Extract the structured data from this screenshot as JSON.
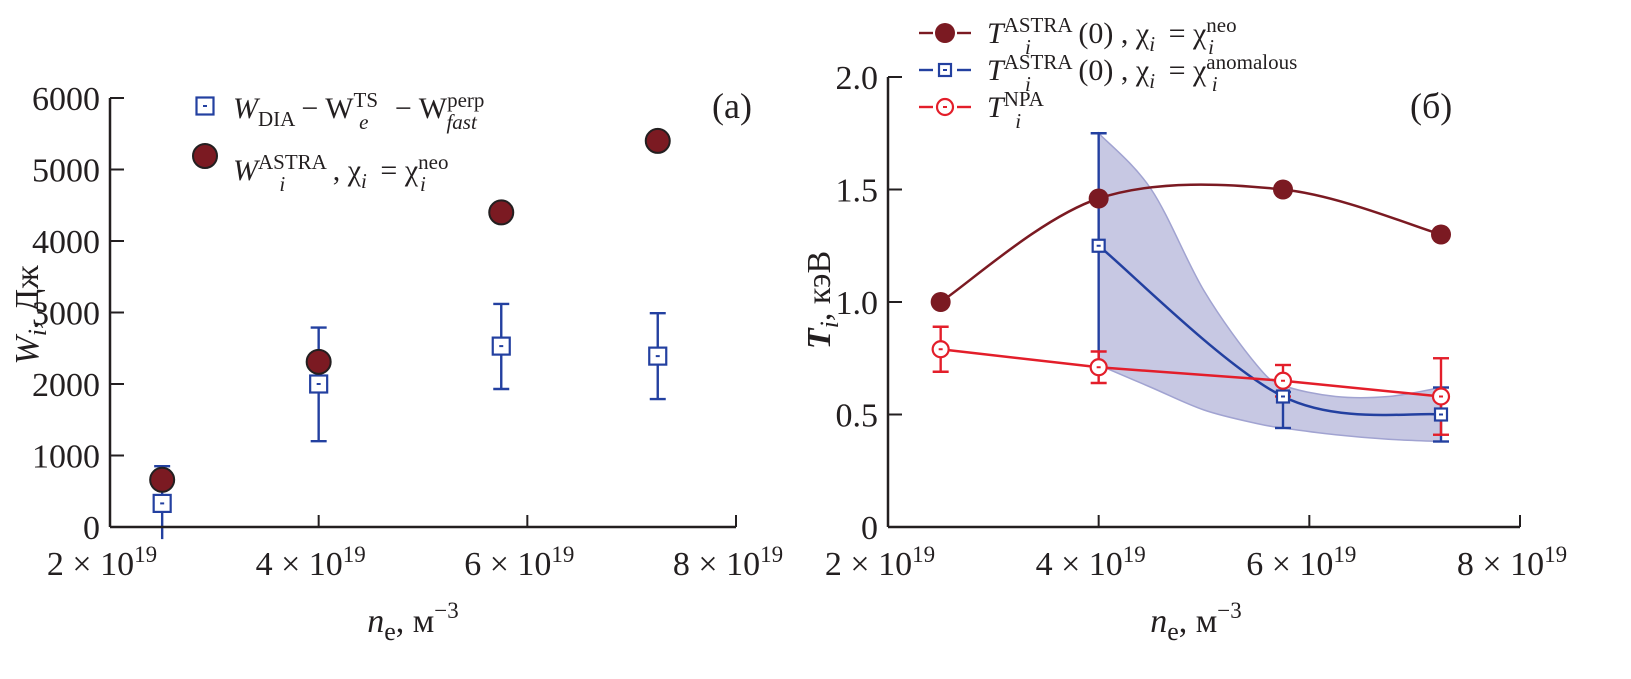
{
  "colors": {
    "axis": "#231f20",
    "astra_neo": "#7b1a22",
    "astra_anomalous": "#2340a0",
    "npa": "#e31e2a",
    "band_fill": "#c5c6e2",
    "band_edge": "#9c9fcf"
  },
  "chart_data": [
    {
      "type": "scatter",
      "panel_label": "(a)",
      "title": "",
      "xlabel": {
        "main": "n",
        "sub": "e",
        "unit": ", м",
        "exp": "−3"
      },
      "ylabel": {
        "main": "W",
        "sub": "i",
        "unit": ", Дж"
      },
      "xlim": [
        2e+19,
        8e+19
      ],
      "ylim": [
        0,
        6000
      ],
      "x_ticks": [
        {
          "value": 2e+19,
          "mant": "2 × 10",
          "exp": "19"
        },
        {
          "value": 4e+19,
          "mant": "4 × 10",
          "exp": "19"
        },
        {
          "value": 6e+19,
          "mant": "6 × 10",
          "exp": "19"
        },
        {
          "value": 8e+19,
          "mant": "8 × 10",
          "exp": "19"
        }
      ],
      "y_ticks": [
        {
          "value": 0,
          "label": "0"
        },
        {
          "value": 1000,
          "label": "1000"
        },
        {
          "value": 2000,
          "label": "2000"
        },
        {
          "value": 3000,
          "label": "3000"
        },
        {
          "value": 4000,
          "label": "4000"
        },
        {
          "value": 5000,
          "label": "5000"
        },
        {
          "value": 6000,
          "label": "6000"
        }
      ],
      "legend_position": "top-left",
      "series": [
        {
          "name": "W_DIA − W_e^TS − W_fast^perp",
          "legend": {
            "a": "W",
            "a_sub": "DIA",
            "b": "− W",
            "b_sup": "TS",
            "b_sub": "e",
            "c": " − W",
            "c_sup": "perp",
            "c_sub": "fast"
          },
          "marker": "square-open",
          "color_key": "astra_anomalous",
          "x": [
            2.5e+19,
            4e+19,
            5.75e+19,
            7.25e+19
          ],
          "y": [
            330,
            2000,
            2530,
            2390
          ],
          "y_err_low": [
            -170,
            1200,
            1930,
            1790
          ],
          "y_err_high": [
            850,
            2790,
            3120,
            2990
          ]
        },
        {
          "name": "W_i^ASTRA, χ_i = χ_i^neo",
          "legend": {
            "a": "W",
            "a_sub": "i",
            "a_sup": "ASTRA",
            "b": ", χ",
            "b_sub": "i",
            "c": " = χ",
            "c_sub": "i",
            "c_sup": "neo"
          },
          "marker": "circle-filled",
          "color_key": "astra_neo",
          "x": [
            2.5e+19,
            4e+19,
            5.75e+19,
            7.25e+19
          ],
          "y": [
            660,
            2310,
            4400,
            5400
          ]
        }
      ]
    },
    {
      "type": "line",
      "panel_label": "(б)",
      "title": "",
      "xlabel": {
        "main": "n",
        "sub": "e",
        "unit": ", м",
        "exp": "−3"
      },
      "ylabel": {
        "main": "T",
        "sub": "i",
        "unit": ", кэВ"
      },
      "xlim": [
        2e+19,
        8e+19
      ],
      "ylim": [
        0,
        2.0
      ],
      "x_ticks": [
        {
          "value": 2e+19,
          "mant": "2 × 10",
          "exp": "19"
        },
        {
          "value": 4e+19,
          "mant": "4 × 10",
          "exp": "19"
        },
        {
          "value": 6e+19,
          "mant": "6 × 10",
          "exp": "19"
        },
        {
          "value": 8e+19,
          "mant": "8 × 10",
          "exp": "19"
        }
      ],
      "y_ticks": [
        {
          "value": 0,
          "label": "0"
        },
        {
          "value": 0.5,
          "label": "0.5"
        },
        {
          "value": 1.0,
          "label": "1.0"
        },
        {
          "value": 1.5,
          "label": "1.5"
        },
        {
          "value": 2.0,
          "label": "2.0"
        }
      ],
      "legend_position": "top-left",
      "series": [
        {
          "name": "T_i^ASTRA(0), χ_i = χ_i^neo",
          "legend": {
            "a": "T",
            "a_sub": "i",
            "a_sup": "ASTRA",
            "b": "(0) , χ",
            "b_sub": "i",
            "c": " = χ",
            "c_sub": "i",
            "c_sup": "neo"
          },
          "marker": "circle-filled",
          "color_key": "astra_neo",
          "x": [
            2.5e+19,
            4e+19,
            5.75e+19,
            7.25e+19
          ],
          "y": [
            1.0,
            1.46,
            1.5,
            1.3
          ]
        },
        {
          "name": "T_i^ASTRA(0), χ_i = χ_i^anomalous",
          "legend": {
            "a": "T",
            "a_sub": "i",
            "a_sup": "ASTRA",
            "b": "(0) , χ",
            "b_sub": "i",
            "c": " = χ",
            "c_sub": "i",
            "c_sup": "anomalous"
          },
          "marker": "square-open",
          "color_key": "astra_anomalous",
          "x": [
            4e+19,
            5.75e+19,
            7.25e+19
          ],
          "y": [
            1.25,
            0.58,
            0.5
          ],
          "y_err_low": [
            0.72,
            0.44,
            0.38
          ],
          "y_err_high": [
            1.75,
            0.6,
            0.62
          ],
          "band": {
            "x": [
              4e+19,
              4.5e+19,
              5e+19,
              5.5e+19,
              5.75e+19,
              6.25e+19,
              6.75e+19,
              7.25e+19
            ],
            "upper": [
              1.75,
              1.5,
              1.05,
              0.72,
              0.63,
              0.58,
              0.58,
              0.62
            ],
            "lower": [
              0.72,
              0.62,
              0.52,
              0.46,
              0.44,
              0.41,
              0.39,
              0.38
            ]
          }
        },
        {
          "name": "T_i^NPA",
          "legend": {
            "a": "T",
            "a_sub": "i",
            "a_sup": "NPA"
          },
          "marker": "circle-open",
          "color_key": "npa",
          "x": [
            2.5e+19,
            4e+19,
            5.75e+19,
            7.25e+19
          ],
          "y": [
            0.79,
            0.71,
            0.65,
            0.58
          ],
          "y_err_low": [
            0.69,
            0.64,
            0.58,
            0.41
          ],
          "y_err_high": [
            0.89,
            0.78,
            0.72,
            0.75
          ]
        }
      ]
    }
  ]
}
